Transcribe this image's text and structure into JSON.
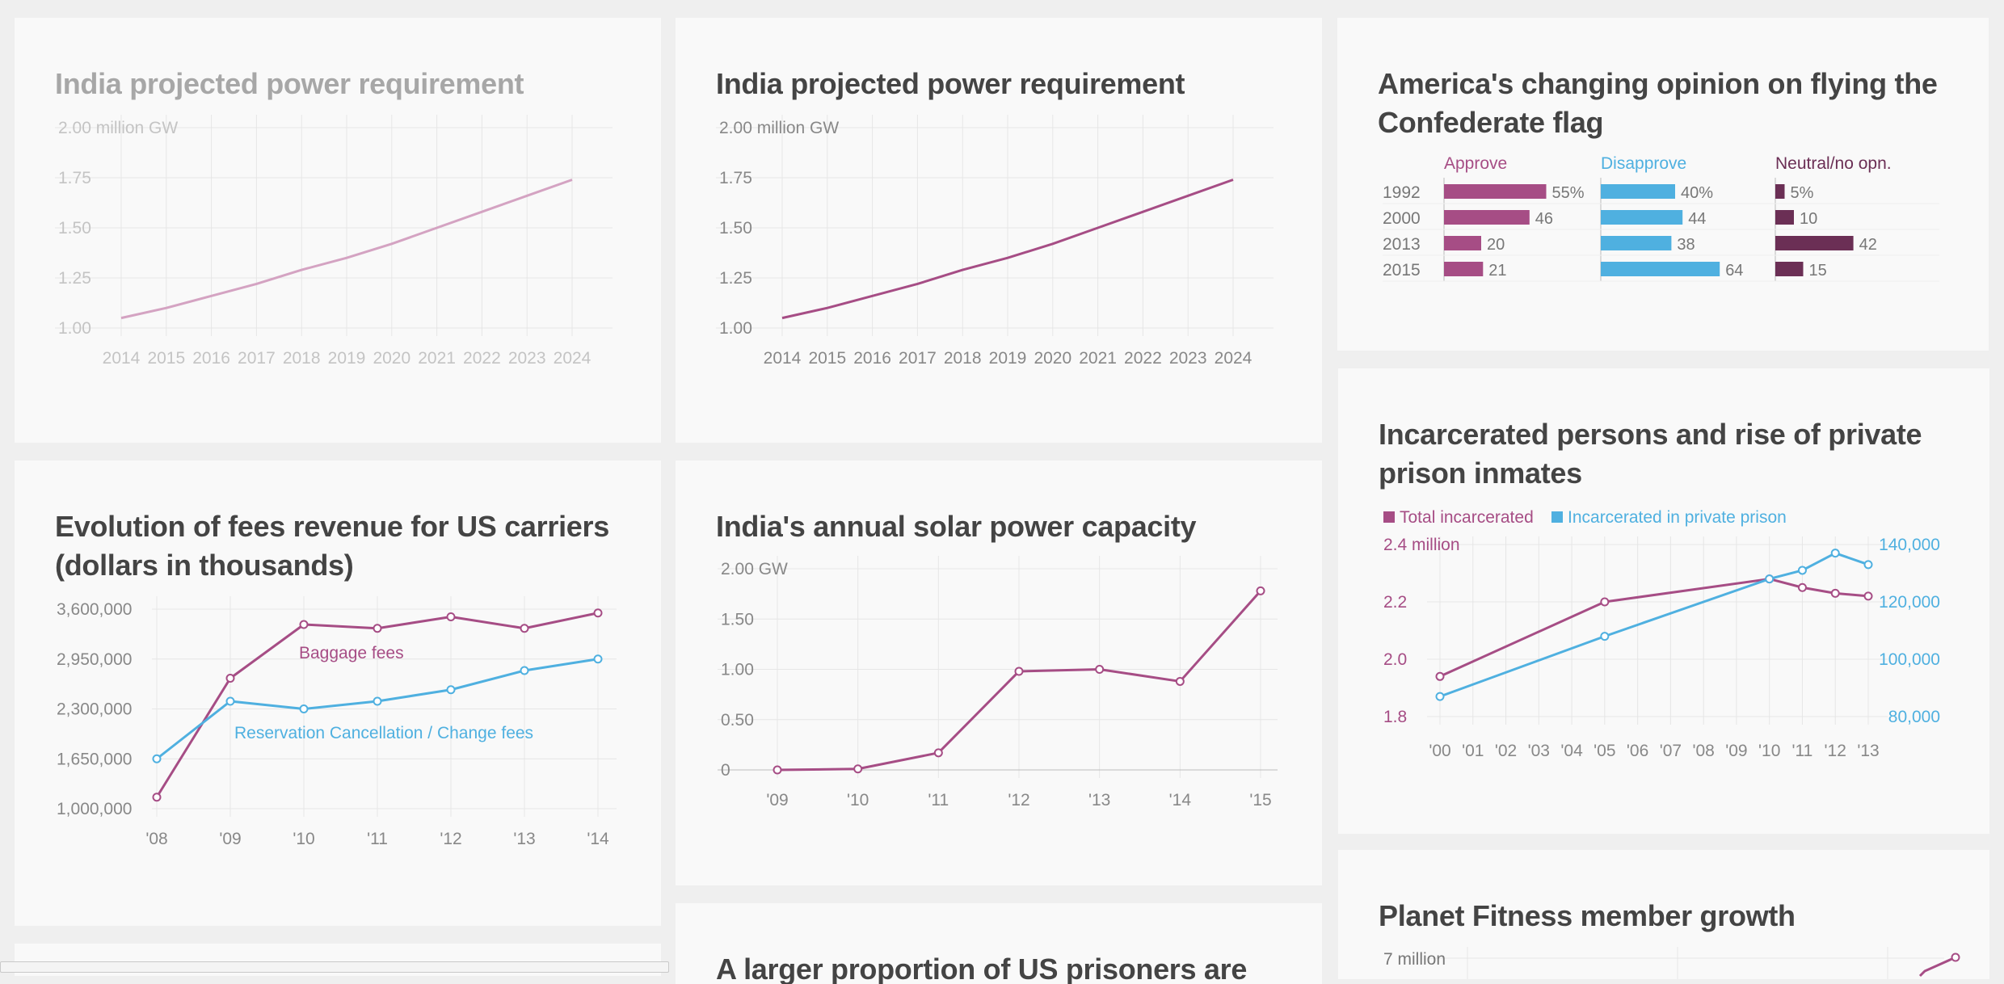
{
  "colors": {
    "purple": "#a64d85",
    "purple_faded": "#d4a3c2",
    "blue": "#4fb0e0",
    "dark_purple": "#6b2f55",
    "axis_text": "#888888",
    "grid": "#e6e6e6"
  },
  "cards": [
    {
      "id": "power-faded",
      "title": "India projected power requirement",
      "chart_data": {
        "type": "line",
        "title": "India projected power requirement",
        "x": [
          "2014",
          "2015",
          "2016",
          "2017",
          "2018",
          "2019",
          "2020",
          "2021",
          "2022",
          "2023",
          "2024"
        ],
        "series": [
          {
            "values": [
              1.05,
              1.1,
              1.16,
              1.22,
              1.29,
              1.35,
              1.42,
              1.5,
              1.58,
              1.66,
              1.74
            ]
          }
        ],
        "ylim": [
          1.0,
          2.0
        ],
        "y_ticks": [
          "1.00",
          "1.25",
          "1.50",
          "1.75",
          "2.00 million GW"
        ],
        "grid": true
      }
    },
    {
      "id": "power",
      "title": "India projected power requirement",
      "chart_data": {
        "type": "line",
        "title": "India projected power requirement",
        "x": [
          "2014",
          "2015",
          "2016",
          "2017",
          "2018",
          "2019",
          "2020",
          "2021",
          "2022",
          "2023",
          "2024"
        ],
        "series": [
          {
            "values": [
              1.05,
              1.1,
              1.16,
              1.22,
              1.29,
              1.35,
              1.42,
              1.5,
              1.58,
              1.66,
              1.74
            ]
          }
        ],
        "ylim": [
          1.0,
          2.0
        ],
        "y_ticks": [
          "1.00",
          "1.25",
          "1.50",
          "1.75",
          "2.00 million GW"
        ],
        "grid": true
      }
    },
    {
      "id": "flag",
      "title": "America's changing opinion on flying the Confederate flag",
      "chart_data": {
        "type": "bar",
        "title": "America's changing opinion on flying the Confederate flag",
        "categories": [
          "1992",
          "2000",
          "2013",
          "2015"
        ],
        "series": [
          {
            "name": "Approve",
            "values": [
              55,
              46,
              20,
              21
            ],
            "labels": [
              "55%",
              "46",
              "20",
              "21"
            ]
          },
          {
            "name": "Disapprove",
            "values": [
              40,
              44,
              38,
              64
            ],
            "labels": [
              "40%",
              "44",
              "38",
              "64"
            ]
          },
          {
            "name": "Neutral/no opn.",
            "values": [
              5,
              10,
              42,
              15
            ],
            "labels": [
              "5%",
              "10",
              "42",
              "15"
            ]
          }
        ]
      }
    },
    {
      "id": "fees",
      "title": "Evolution of fees revenue for US carriers (dollars in thousands)",
      "chart_data": {
        "type": "line",
        "title": "Evolution of fees revenue for US carriers (dollars in thousands)",
        "x": [
          "'08",
          "'09",
          "'10",
          "'11",
          "'12",
          "'13",
          "'14"
        ],
        "series": [
          {
            "name": "Baggage fees",
            "values": [
              1150000,
              2700000,
              3400000,
              3350000,
              3500000,
              3350000,
              3550000
            ]
          },
          {
            "name": "Reservation Cancellation / Change fees",
            "values": [
              1650000,
              2400000,
              2300000,
              2400000,
              2550000,
              2800000,
              2950000
            ]
          }
        ],
        "ylim": [
          1000000,
          3600000
        ],
        "y_ticks": [
          "1,000,000",
          "1,650,000",
          "2,300,000",
          "2,950,000",
          "3,600,000"
        ],
        "grid": true
      }
    },
    {
      "id": "solar",
      "title": "India's annual solar power capacity",
      "chart_data": {
        "type": "line",
        "title": "India's annual solar power capacity",
        "x": [
          "'09",
          "'10",
          "'11",
          "'12",
          "'13",
          "'14",
          "'15"
        ],
        "series": [
          {
            "values": [
              0.0,
              0.01,
              0.17,
              0.98,
              1.0,
              0.88,
              1.78
            ]
          }
        ],
        "ylim": [
          0,
          2.0
        ],
        "y_ticks": [
          "0",
          "0.50",
          "1.00",
          "1.50",
          "2.00 GW"
        ],
        "grid": true
      }
    },
    {
      "id": "prison",
      "title": "Incarcerated persons and rise of private prison inmates",
      "chart_data": {
        "type": "line",
        "title": "Incarcerated persons and rise of private prison inmates",
        "x": [
          "'00",
          "'01",
          "'02",
          "'03",
          "'04",
          "'05",
          "'06",
          "'07",
          "'08",
          "'09",
          "'10",
          "'11",
          "'12",
          "'13"
        ],
        "series": [
          {
            "name": "Total incarcerated",
            "points": [
              [
                "'00",
                1.94
              ],
              [
                "'05",
                2.2
              ],
              [
                "'10",
                2.28
              ],
              [
                "'11",
                2.25
              ],
              [
                "'12",
                2.23
              ],
              [
                "'13",
                2.22
              ]
            ],
            "ylim": [
              1.8,
              2.4
            ]
          },
          {
            "name": "Incarcerated in private prison",
            "points": [
              [
                "'00",
                87000
              ],
              [
                "'05",
                108000
              ],
              [
                "'10",
                128000
              ],
              [
                "'11",
                131000
              ],
              [
                "'12",
                137000
              ],
              [
                "'13",
                133000
              ]
            ],
            "ylim": [
              80000,
              140000
            ]
          }
        ],
        "y_ticks_left": [
          "1.8",
          "2.0",
          "2.2",
          "2.4 million"
        ],
        "y_ticks_right": [
          "80,000",
          "100,000",
          "120,000",
          "140,000"
        ],
        "legend": "top-left",
        "grid": true
      }
    },
    {
      "id": "fitness",
      "title": "Planet Fitness member growth",
      "chart_data": {
        "type": "line",
        "title": "Planet Fitness member growth",
        "y_ticks": [
          "7 million"
        ],
        "series": [
          {
            "values": []
          }
        ]
      }
    },
    {
      "id": "prisoners",
      "title": "A larger proportion of US prisoners are"
    }
  ],
  "status_bar": {
    "text": ""
  }
}
